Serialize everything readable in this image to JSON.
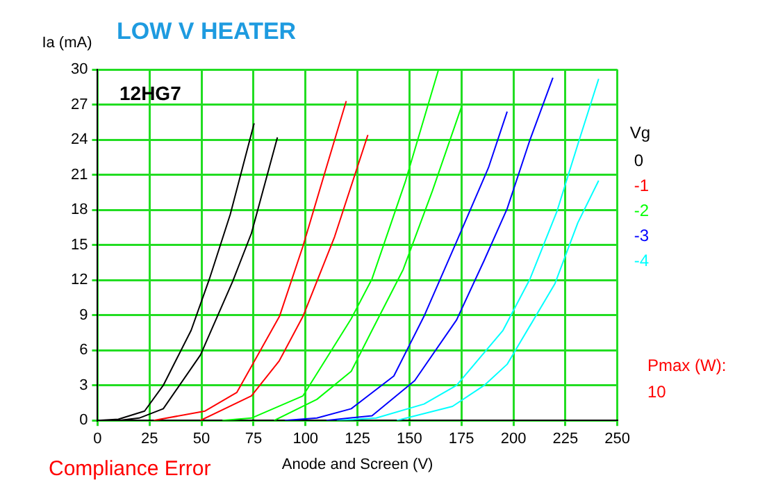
{
  "chart_data": {
    "type": "line",
    "title": "LOW V HEATER",
    "xlabel": "Anode and Screen (V)",
    "ylabel": "Ia (mA)",
    "legend_title": "Vg",
    "legend": "right",
    "grid": true,
    "marker": "none",
    "line_style": "solid",
    "annotations": [
      "12HG7",
      "Compliance Error",
      "Pmax (W):",
      "10"
    ],
    "xlim": [
      0,
      250
    ],
    "xticks": [
      0,
      25,
      50,
      75,
      100,
      125,
      150,
      175,
      200,
      225,
      250
    ],
    "ylim": [
      0,
      30
    ],
    "yticks": [
      0,
      3,
      6,
      9,
      12,
      15,
      18,
      21,
      24,
      27,
      30
    ],
    "series": [
      {
        "name": "0",
        "color": "#000000",
        "x": [
          0,
          10,
          22.6,
          31.6,
          45,
          53.8,
          63.8,
          75.3
        ],
        "values": [
          0,
          0.1,
          0.8,
          3.0,
          7.7,
          12.1,
          17.6,
          25.4
        ]
      },
      {
        "color": "#000000",
        "x": [
          10,
          20,
          31.6,
          49.5,
          65,
          74,
          86.5
        ],
        "values": [
          0,
          0.2,
          1.0,
          5.6,
          11.9,
          16,
          24.2
        ]
      },
      {
        "name": "-1",
        "color": "#ff0000",
        "x": [
          27,
          51.7,
          67,
          87.5,
          98.8,
          110,
          119.6
        ],
        "values": [
          0,
          0.8,
          2.4,
          8.9,
          14.9,
          21.6,
          27.3
        ]
      },
      {
        "color": "#ff0000",
        "x": [
          49.5,
          74,
          87.4,
          98.8,
          114,
          130
        ],
        "values": [
          0,
          2.1,
          5.1,
          8.9,
          15.7,
          24.4
        ]
      },
      {
        "name": "-2",
        "color": "#00ff00",
        "x": [
          60,
          74,
          98.8,
          105.5,
          122,
          132,
          148,
          164
        ],
        "values": [
          0,
          0.2,
          2.1,
          4.0,
          8.7,
          12.1,
          20.4,
          30
        ]
      },
      {
        "color": "#00ff00",
        "x": [
          85,
          105.5,
          122,
          132,
          147,
          161,
          175
        ],
        "values": [
          0,
          1.8,
          4.2,
          7.7,
          12.9,
          19.6,
          26.8
        ]
      },
      {
        "name": "-3",
        "color": "#0000ff",
        "x": [
          90,
          105.5,
          122,
          142.5,
          157,
          172.7,
          188,
          197
        ],
        "values": [
          0,
          0.2,
          1.0,
          3.8,
          8.9,
          15.3,
          21.6,
          26.4
        ]
      },
      {
        "color": "#0000ff",
        "x": [
          110,
          132,
          152.5,
          172.7,
          186,
          197,
          208,
          219
        ],
        "values": [
          0,
          0.4,
          3.4,
          8.6,
          13.7,
          18.1,
          24,
          29.3
        ]
      },
      {
        "name": "-4",
        "color": "#00ffff",
        "x": [
          115,
          134,
          157,
          172.7,
          195,
          208,
          221,
          231,
          241
        ],
        "values": [
          0,
          0.2,
          1.4,
          3.0,
          7.7,
          12.1,
          17.9,
          23.6,
          29.2
        ]
      },
      {
        "color": "#00ffff",
        "x": [
          144,
          170.7,
          186,
          197,
          220,
          231,
          241
        ],
        "values": [
          0,
          1.2,
          3.0,
          4.8,
          11.7,
          16.9,
          20.5
        ]
      }
    ]
  }
}
